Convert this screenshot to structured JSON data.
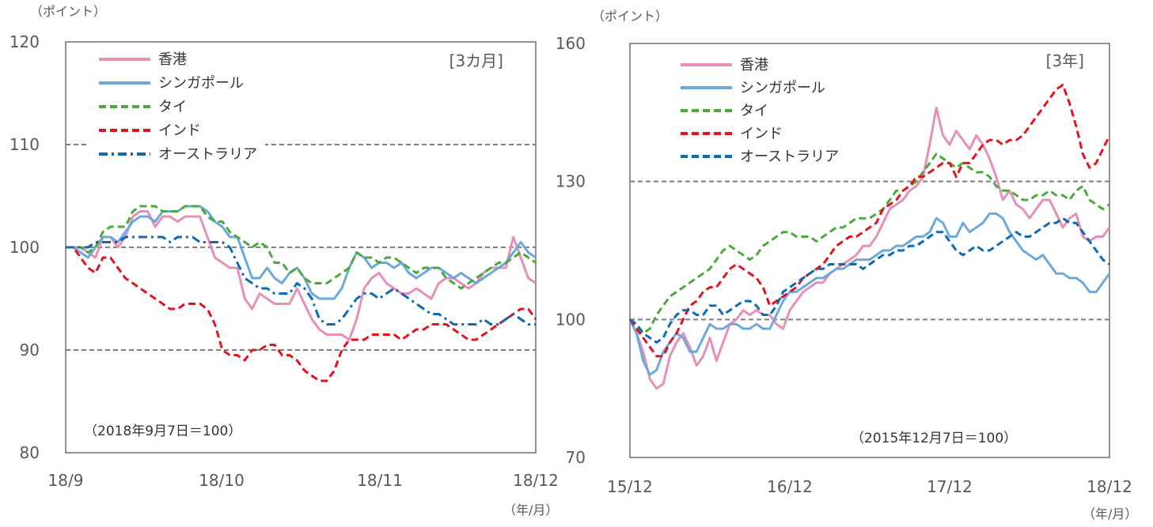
{
  "chart_data": [
    {
      "type": "line",
      "y_unit": "（ポイント）",
      "x_unit": "（年/月）",
      "period": "[3カ月]",
      "note": "（2018年9月7日＝100）",
      "ylim": [
        80,
        120
      ],
      "yticks": [
        "80",
        "90",
        "100",
        "110",
        "120"
      ],
      "xticks": [
        "18/9",
        "18/10",
        "18/11",
        "18/12"
      ],
      "ref_lines": [
        90,
        100,
        110
      ],
      "legend_position": "top-left",
      "x_count": 64,
      "series": [
        {
          "name": "香港",
          "color": "#E88FB7",
          "dash": "solid",
          "values": [
            100,
            100,
            100,
            99.5,
            99,
            101,
            101,
            100,
            101,
            103,
            103.5,
            103.5,
            102,
            103,
            103,
            102.5,
            103,
            103,
            103,
            101,
            99,
            98.5,
            98,
            98,
            95,
            94,
            95.5,
            95,
            94.5,
            94.5,
            94.5,
            96,
            94.5,
            93,
            92,
            91.5,
            91.5,
            91.5,
            91,
            93,
            96,
            97,
            97.5,
            96.5,
            96,
            95.5,
            95.5,
            96,
            95.5,
            95,
            96.5,
            97,
            97,
            96.5,
            96,
            96.5,
            97.5,
            98,
            98,
            98,
            101,
            99,
            97,
            96.5
          ]
        },
        {
          "name": "シンガポール",
          "color": "#6CA9DB",
          "dash": "solid",
          "values": [
            100,
            100,
            99.5,
            99,
            100,
            101,
            101,
            100.5,
            101.5,
            102.5,
            103,
            103,
            102.5,
            103.5,
            103.5,
            103.5,
            104,
            104,
            104,
            103.5,
            102.5,
            102,
            101,
            101,
            99,
            97,
            97,
            98,
            97,
            96.5,
            97.5,
            98,
            97,
            95.5,
            95,
            95,
            95,
            96,
            98,
            99.5,
            99,
            98,
            98.5,
            98.5,
            98,
            98.5,
            97.5,
            97,
            97.5,
            98,
            98,
            97.5,
            97,
            97.5,
            97,
            96.5,
            97,
            97.5,
            98,
            98.5,
            99.5,
            100.5,
            99.5,
            99
          ]
        },
        {
          "name": "タイ",
          "color": "#4AAA3A",
          "dash": "dashed",
          "values": [
            100,
            100,
            100,
            99.5,
            100,
            101.5,
            102,
            102,
            102,
            103.5,
            104,
            104,
            104,
            103.5,
            103.5,
            103.5,
            104,
            104,
            104,
            103,
            102.5,
            102.5,
            101.5,
            101,
            100.5,
            100,
            100.5,
            100,
            98.5,
            98.5,
            97.5,
            98,
            97,
            96.5,
            96.5,
            96.5,
            97,
            97.5,
            98,
            99.5,
            99,
            99,
            98.5,
            99,
            99,
            98.5,
            98,
            97.5,
            98,
            98,
            98,
            97,
            96.5,
            96,
            96.5,
            97,
            97.5,
            98,
            98.5,
            98.5,
            99,
            99.5,
            99,
            98.5
          ]
        },
        {
          "name": "インド",
          "color": "#E0141E",
          "dash": "dashed",
          "values": [
            100,
            100,
            99,
            98,
            97.5,
            99,
            99,
            98,
            97,
            96.5,
            96,
            95.5,
            95,
            94.5,
            94,
            94,
            94.5,
            94.5,
            94.5,
            94,
            92.5,
            90,
            89.5,
            89.5,
            89,
            90,
            90,
            90.5,
            90.5,
            89.5,
            89.5,
            89,
            88,
            87.5,
            87,
            87,
            88,
            90,
            91,
            91,
            91,
            91.5,
            91.5,
            91.5,
            91.5,
            91,
            91.5,
            92,
            92,
            92.5,
            92.5,
            92.5,
            92,
            91.5,
            91,
            91,
            91.5,
            92,
            92.5,
            93,
            93.5,
            94,
            94,
            93
          ]
        },
        {
          "name": "オーストラリア",
          "color": "#0B6BB5",
          "dash": "dashdot",
          "values": [
            100,
            100,
            100,
            100,
            100.5,
            100.5,
            100.5,
            100.5,
            101,
            101,
            101,
            101,
            101,
            101,
            100.5,
            101,
            101,
            101,
            100.5,
            100.5,
            100.5,
            100.5,
            100,
            98.5,
            97,
            96.5,
            96,
            96,
            95.5,
            95.5,
            95.5,
            96.5,
            96,
            95,
            93,
            92.5,
            92.5,
            93,
            94,
            95,
            95.5,
            95.5,
            95,
            95.5,
            96,
            95.5,
            95,
            94.5,
            94,
            93.5,
            93.5,
            93,
            92.5,
            92.5,
            92.5,
            92.5,
            93,
            92.5,
            92.5,
            93,
            93.5,
            93,
            92.5,
            92.5
          ]
        }
      ]
    },
    {
      "type": "line",
      "y_unit": "（ポイント）",
      "x_unit": "（年/月）",
      "period": "[3年]",
      "note": "（2015年12月7日＝100）",
      "ylim": [
        70,
        160
      ],
      "yticks": [
        "70",
        "100",
        "130",
        "160"
      ],
      "xticks": [
        "15/12",
        "16/12",
        "17/12",
        "18/12"
      ],
      "ref_lines": [
        100,
        130
      ],
      "legend_position": "top-left",
      "x_count": 73,
      "series": [
        {
          "name": "香港",
          "color": "#E88FB7",
          "dash": "solid",
          "values": [
            100,
            97,
            93,
            87,
            85,
            86,
            92,
            95,
            97,
            94,
            90,
            92,
            96,
            91,
            95,
            99,
            100,
            102,
            101,
            102,
            101,
            101,
            99,
            98,
            102,
            104,
            106,
            107,
            108,
            108,
            110,
            111,
            112,
            113,
            114,
            116,
            116,
            118,
            121,
            124,
            125,
            126,
            128,
            129,
            131,
            138,
            146,
            140,
            138,
            141,
            139,
            137,
            140,
            138,
            135,
            131,
            126,
            128,
            125,
            124,
            122,
            124,
            126,
            126,
            123,
            120,
            122,
            123,
            118,
            117,
            118,
            118,
            120
          ]
        },
        {
          "name": "シンガポール",
          "color": "#6CA9DB",
          "dash": "solid",
          "values": [
            100,
            97,
            91,
            88,
            89,
            93,
            95,
            97,
            96,
            93,
            93,
            96,
            99,
            98,
            98,
            99,
            99,
            98,
            98,
            99,
            98,
            98,
            101,
            104,
            106,
            106,
            107,
            108,
            109,
            109,
            110,
            111,
            111,
            112,
            113,
            113,
            113,
            114,
            115,
            115,
            116,
            116,
            117,
            118,
            118,
            119,
            122,
            121,
            118,
            118,
            121,
            119,
            120,
            121,
            123,
            123,
            122,
            119,
            117,
            115,
            114,
            113,
            114,
            112,
            110,
            110,
            109,
            109,
            108,
            106,
            106,
            108,
            110
          ]
        },
        {
          "name": "タイ",
          "color": "#4AAA3A",
          "dash": "dashed",
          "values": [
            100,
            98,
            97,
            98,
            101,
            103,
            105,
            106,
            107,
            108,
            109,
            110,
            111,
            113,
            115,
            116,
            115,
            114,
            113,
            114,
            116,
            117,
            118,
            119,
            119,
            118,
            118,
            118,
            117,
            118,
            119,
            120,
            120,
            121,
            122,
            122,
            122,
            123,
            124,
            126,
            128,
            128,
            129,
            130,
            132,
            134,
            136,
            135,
            134,
            133,
            134,
            133,
            132,
            132,
            131,
            129,
            128,
            128,
            127,
            126,
            126,
            127,
            127,
            128,
            127,
            127,
            126,
            128,
            129,
            126,
            125,
            124,
            125
          ]
        },
        {
          "name": "インド",
          "color": "#E0141E",
          "dash": "dashed",
          "values": [
            100,
            98,
            96,
            94,
            92,
            92,
            95,
            97,
            100,
            103,
            104,
            106,
            107,
            107,
            109,
            111,
            112,
            111,
            110,
            109,
            107,
            103,
            104,
            105,
            106,
            107,
            109,
            110,
            111,
            112,
            114,
            116,
            117,
            118,
            118,
            119,
            120,
            121,
            124,
            125,
            126,
            128,
            129,
            131,
            131,
            132,
            133,
            134,
            134,
            131,
            134,
            134,
            136,
            138,
            139,
            139,
            138,
            139,
            139,
            140,
            142,
            144,
            146,
            148,
            150,
            151,
            147,
            142,
            136,
            133,
            134,
            137,
            140
          ]
        },
        {
          "name": "オーストラリア",
          "color": "#0B6BB5",
          "dash": "dashed",
          "values": [
            100,
            99,
            97,
            96,
            95,
            96,
            99,
            101,
            102,
            102,
            101,
            101,
            103,
            103,
            101,
            102,
            103,
            104,
            104,
            103,
            101,
            101,
            103,
            106,
            107,
            108,
            109,
            110,
            111,
            111,
            112,
            112,
            112,
            112,
            112,
            111,
            112,
            113,
            114,
            114,
            115,
            115,
            116,
            116,
            117,
            118,
            119,
            119,
            117,
            115,
            114,
            115,
            116,
            115,
            115,
            116,
            117,
            118,
            119,
            118,
            118,
            119,
            120,
            121,
            121,
            122,
            121,
            121,
            119,
            117,
            115,
            113,
            112
          ]
        }
      ]
    }
  ]
}
